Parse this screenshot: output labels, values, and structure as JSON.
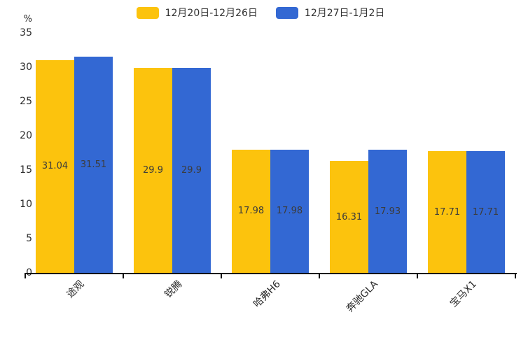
{
  "chart_data": {
    "type": "bar",
    "title": "",
    "unit_label": "%",
    "categories": [
      "途观",
      "锐腾",
      "哈弗H6",
      "奔驰GLA",
      "宝马X1"
    ],
    "series": [
      {
        "name": "12月20日-12月26日",
        "color": "#FCC30D",
        "values": [
          31.04,
          29.9,
          17.98,
          16.31,
          17.71
        ]
      },
      {
        "name": "12月27日-1月2日",
        "color": "#3368D3",
        "values": [
          31.51,
          29.9,
          17.98,
          17.93,
          17.71
        ]
      }
    ],
    "value_labels": [
      "31.04",
      "29.9",
      "17.98",
      "16.31",
      "17.71",
      "31.51",
      "29.9",
      "17.98",
      "17.93",
      "17.71"
    ],
    "ylim": [
      0,
      35
    ],
    "yticks": [
      0,
      5,
      10,
      15,
      20,
      25,
      30,
      35
    ],
    "xlabel": "",
    "ylabel": "%",
    "legend_position": "top",
    "grid": false,
    "bar_label_color": "#3c3c3c",
    "axis_color": "#111111"
  }
}
